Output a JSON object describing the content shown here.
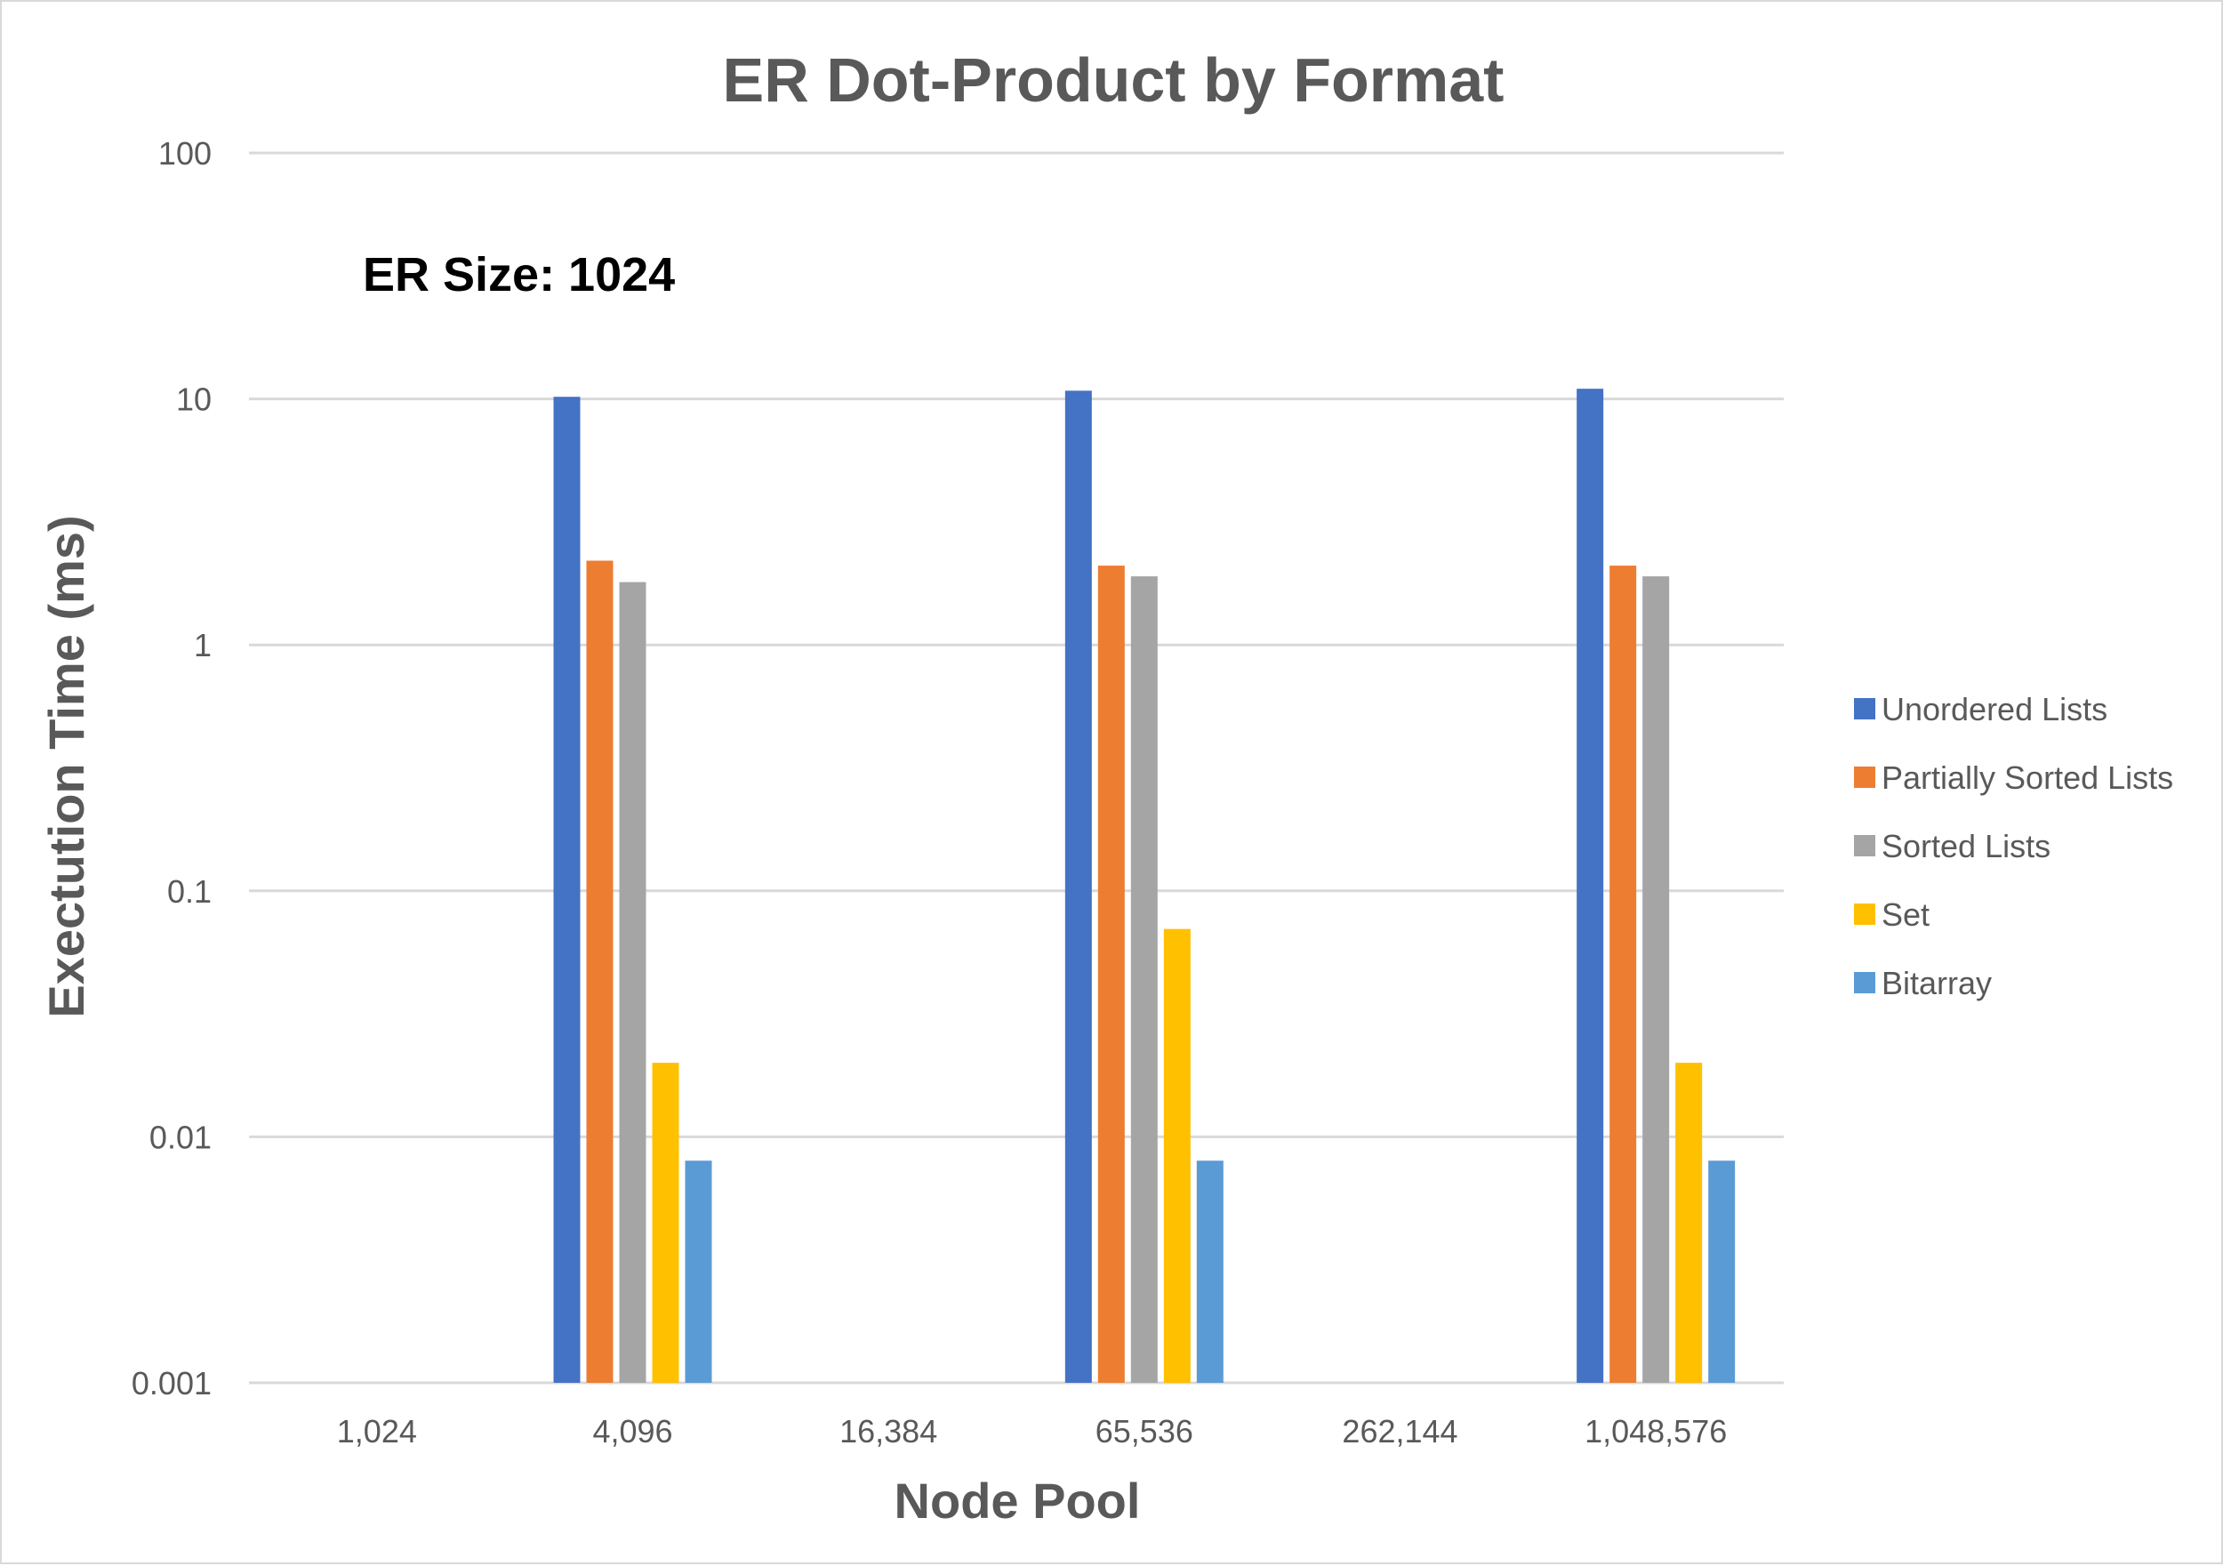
{
  "chart_data": {
    "type": "bar",
    "title": "ER Dot-Product by Format",
    "annotation": "ER Size: 1024",
    "xlabel": "Node Pool",
    "ylabel": "Exectution Time (ms)",
    "yscale": "log",
    "ylim": [
      0.001,
      100
    ],
    "yticks": [
      "0.001",
      "0.01",
      "0.1",
      "1",
      "10",
      "100"
    ],
    "ytick_values": [
      0.001,
      0.01,
      0.1,
      1,
      10,
      100
    ],
    "grid": true,
    "legend_position": "right",
    "categories": [
      "1,024",
      "4,096",
      "16,384",
      "65,536",
      "262,144",
      "1,048,576"
    ],
    "series": [
      {
        "name": "Unordered Lists",
        "color": "#4472c4",
        "values": [
          null,
          10.2,
          null,
          10.8,
          null,
          11.0
        ]
      },
      {
        "name": "Partially Sorted Lists",
        "color": "#ed7d31",
        "values": [
          null,
          2.2,
          null,
          2.1,
          null,
          2.1
        ]
      },
      {
        "name": "Sorted Lists",
        "color": "#a5a5a5",
        "values": [
          null,
          1.8,
          null,
          1.9,
          null,
          1.9
        ]
      },
      {
        "name": "Set",
        "color": "#ffc000",
        "values": [
          null,
          0.02,
          null,
          0.07,
          null,
          0.02
        ]
      },
      {
        "name": "Bitarray",
        "color": "#5b9bd5",
        "values": [
          null,
          0.008,
          null,
          0.008,
          null,
          0.008
        ]
      }
    ]
  }
}
